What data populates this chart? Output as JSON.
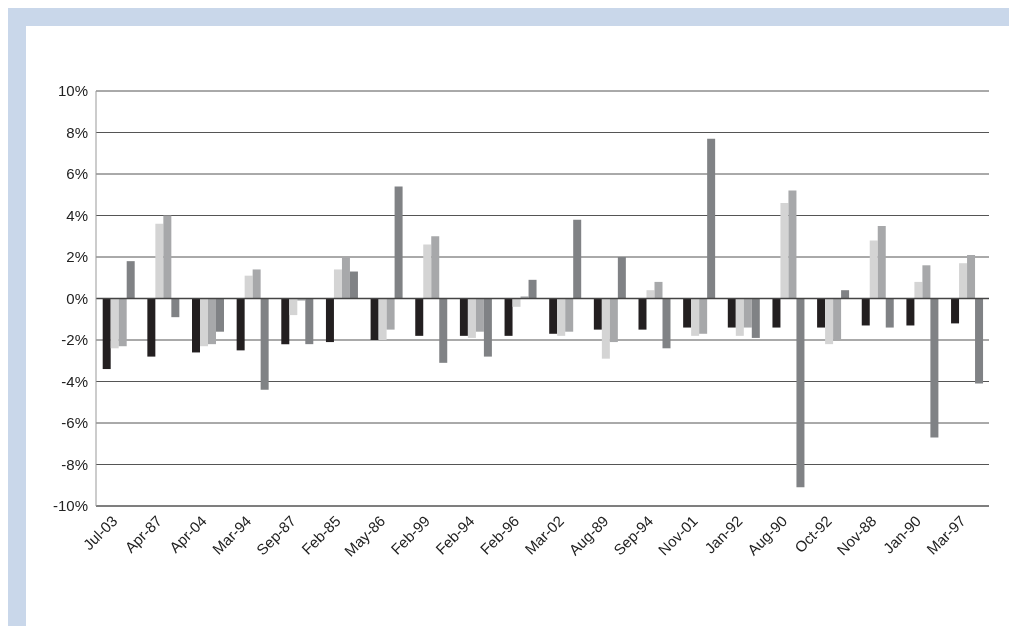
{
  "chart_data": {
    "type": "bar",
    "categories": [
      "Jul-03",
      "Apr-87",
      "Apr-04",
      "Mar-94",
      "Sep-87",
      "Feb-85",
      "May-86",
      "Feb-99",
      "Feb-94",
      "Feb-96",
      "Mar-02",
      "Aug-89",
      "Sep-94",
      "Nov-01",
      "Jan-92",
      "Aug-90",
      "Oct-92",
      "Nov-88",
      "Jan-90",
      "Mar-97"
    ],
    "series": [
      {
        "color": "#231f20",
        "values": [
          -3.4,
          -2.8,
          -2.6,
          -2.5,
          -2.2,
          -2.1,
          -2.0,
          -1.8,
          -1.8,
          -1.8,
          -1.7,
          -1.5,
          -1.5,
          -1.4,
          -1.4,
          -1.4,
          -1.4,
          -1.3,
          -1.3,
          -1.2
        ]
      },
      {
        "color": "#d4d4d4",
        "values": [
          -2.4,
          3.6,
          -2.3,
          1.1,
          -0.8,
          1.4,
          -2.0,
          2.6,
          -1.9,
          -0.4,
          -1.8,
          -2.9,
          0.4,
          -1.8,
          -1.8,
          4.6,
          -2.2,
          2.8,
          0.8,
          1.7
        ]
      },
      {
        "color": "#a7a8aa",
        "values": [
          -2.3,
          4.0,
          -2.2,
          1.4,
          -0.1,
          2.0,
          -1.5,
          3.0,
          -1.6,
          0.1,
          -1.6,
          -2.1,
          0.8,
          -1.7,
          -1.4,
          5.2,
          -2.0,
          3.5,
          1.6,
          2.1
        ]
      },
      {
        "color": "#808285",
        "values": [
          1.8,
          -0.9,
          -1.6,
          -4.4,
          -2.2,
          1.3,
          5.4,
          -3.1,
          -2.8,
          0.9,
          3.8,
          2.0,
          -2.4,
          7.7,
          -1.9,
          -9.1,
          0.4,
          -1.4,
          -6.7,
          -4.1
        ]
      }
    ],
    "ylim": [
      -10,
      10
    ],
    "yticks": [
      {
        "value": -10,
        "label": "-10%"
      },
      {
        "value": -8,
        "label": "-8%"
      },
      {
        "value": -6,
        "label": "-6%"
      },
      {
        "value": -4,
        "label": "-4%"
      },
      {
        "value": -2,
        "label": "-2%"
      },
      {
        "value": 0,
        "label": "0%"
      },
      {
        "value": 2,
        "label": "2%"
      },
      {
        "value": 4,
        "label": "4%"
      },
      {
        "value": 6,
        "label": "6%"
      },
      {
        "value": 8,
        "label": "8%"
      },
      {
        "value": 10,
        "label": "10%"
      }
    ],
    "grid": "y"
  }
}
